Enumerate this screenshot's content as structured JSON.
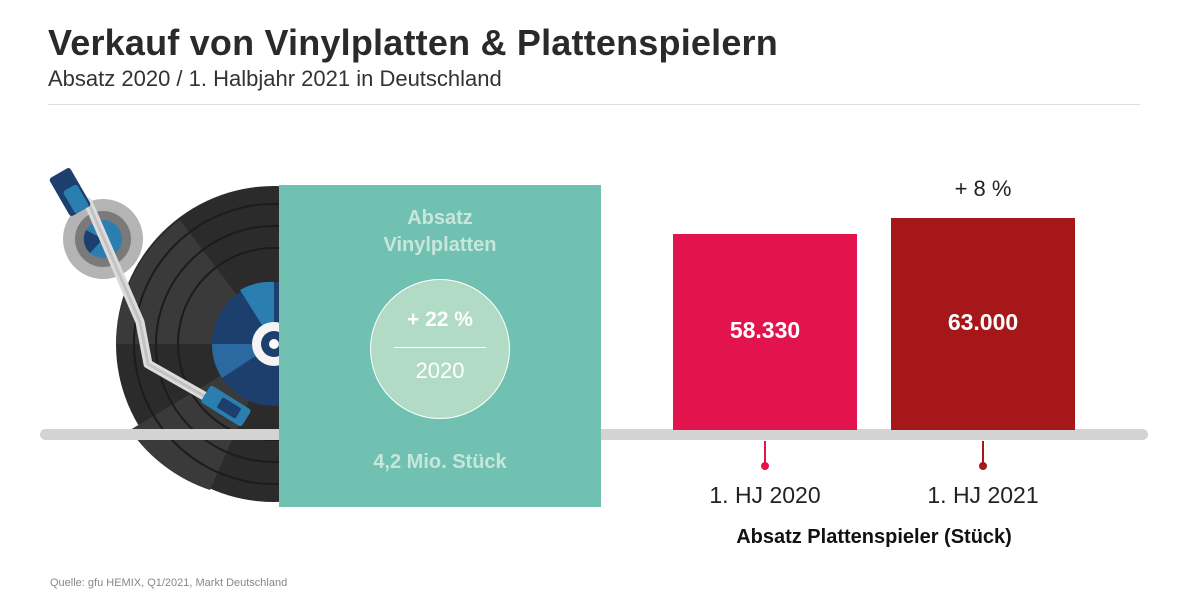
{
  "title": "Verkauf von Vinylplatten & Plattenspielern",
  "subtitle": "Absatz 2020 / 1. Halbjahr 2021 in Deutschland",
  "vinyl": {
    "label_line1": "Absatz",
    "label_line2": "Vinylplatten",
    "growth": "+ 22 %",
    "year": "2020",
    "volume": "4,2 Mio. Stück"
  },
  "chart_data": {
    "type": "bar",
    "categories": [
      "1. HJ 2020",
      "1. HJ 2021"
    ],
    "values": [
      58330,
      63000
    ],
    "value_labels": [
      "58.330",
      "63.000"
    ],
    "change_label": "+ 8 %",
    "xlabel": "Absatz Plattenspieler (Stück)",
    "ylabel": "",
    "colors": [
      "#e3134d",
      "#a61719"
    ]
  },
  "source": "Quelle: gfu HEMIX, Q1/2021, Markt Deutschland",
  "colors": {
    "vinyl_box": "#70c1b2",
    "ground": "#d3d3d3",
    "record": "#2b2b2b"
  }
}
